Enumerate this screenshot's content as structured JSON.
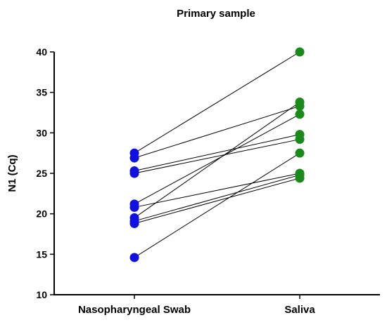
{
  "chart_data": {
    "type": "line",
    "title": "Primary sample",
    "ylabel": "N1 (Cq)",
    "xlabel": "",
    "categories": [
      "Nasopharyngeal Swab",
      "Saliva"
    ],
    "ylim": [
      10,
      40
    ],
    "yticks": [
      10,
      15,
      20,
      25,
      30,
      35,
      40
    ],
    "grid": false,
    "legend": "none",
    "colors": {
      "Nasopharyngeal Swab": "#1010e0",
      "Saliva": "#1a8a1a",
      "line": "#000000"
    },
    "pairs": [
      [
        27.5,
        40.0
      ],
      [
        26.9,
        33.3
      ],
      [
        25.3,
        29.8
      ],
      [
        25.0,
        29.2
      ],
      [
        21.2,
        32.3
      ],
      [
        20.8,
        25.0
      ],
      [
        19.5,
        33.8
      ],
      [
        19.1,
        24.8
      ],
      [
        18.8,
        24.4
      ],
      [
        14.6,
        27.5
      ]
    ]
  }
}
